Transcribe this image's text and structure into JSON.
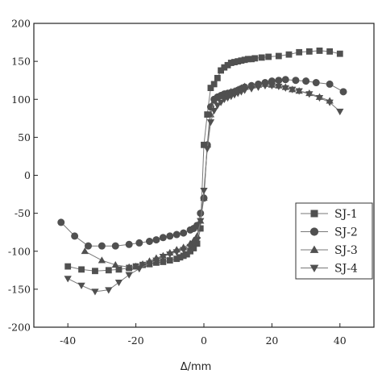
{
  "chart_data": {
    "type": "scatter",
    "title": "",
    "xlabel": "Δ/mm",
    "ylabel": "",
    "xlim": [
      -50,
      50
    ],
    "ylim": [
      -200,
      200
    ],
    "x_ticks": [
      -40,
      -20,
      0,
      20,
      40
    ],
    "y_ticks": [
      -200,
      -150,
      -100,
      -50,
      0,
      50,
      100,
      150,
      200
    ],
    "grid": false,
    "legend_position": "right",
    "series": [
      {
        "name": "SJ-1",
        "marker": "square",
        "color": "#4a4a4a",
        "points": [
          [
            -40,
            -120
          ],
          [
            -36,
            -124
          ],
          [
            -32,
            -126
          ],
          [
            -28,
            -125
          ],
          [
            -25,
            -124
          ],
          [
            -22,
            -122
          ],
          [
            -20,
            -120
          ],
          [
            -18,
            -118
          ],
          [
            -16,
            -117
          ],
          [
            -14,
            -115
          ],
          [
            -12,
            -114
          ],
          [
            -10,
            -112
          ],
          [
            -8,
            -110
          ],
          [
            -7,
            -108
          ],
          [
            -6,
            -106
          ],
          [
            -5,
            -104
          ],
          [
            -4,
            -100
          ],
          [
            -3,
            -96
          ],
          [
            -2,
            -90
          ],
          [
            -1,
            -70
          ],
          [
            0,
            40
          ],
          [
            1,
            80
          ],
          [
            2,
            115
          ],
          [
            3,
            120
          ],
          [
            4,
            128
          ],
          [
            5,
            138
          ],
          [
            6,
            142
          ],
          [
            7,
            145
          ],
          [
            8,
            148
          ],
          [
            9,
            149
          ],
          [
            10,
            150
          ],
          [
            11,
            151
          ],
          [
            12,
            152
          ],
          [
            13,
            153
          ],
          [
            14,
            153
          ],
          [
            15,
            154
          ],
          [
            17,
            155
          ],
          [
            19,
            156
          ],
          [
            22,
            157
          ],
          [
            25,
            159
          ],
          [
            28,
            162
          ],
          [
            31,
            163
          ],
          [
            34,
            164
          ],
          [
            37,
            163
          ],
          [
            40,
            160
          ]
        ]
      },
      {
        "name": "SJ-2",
        "marker": "circle",
        "color": "#4a4a4a",
        "points": [
          [
            -42,
            -62
          ],
          [
            -38,
            -80
          ],
          [
            -34,
            -93
          ],
          [
            -30,
            -93
          ],
          [
            -26,
            -93
          ],
          [
            -22,
            -91
          ],
          [
            -19,
            -89
          ],
          [
            -16,
            -87
          ],
          [
            -14,
            -85
          ],
          [
            -12,
            -82
          ],
          [
            -10,
            -80
          ],
          [
            -8,
            -78
          ],
          [
            -6,
            -76
          ],
          [
            -4,
            -72
          ],
          [
            -3,
            -70
          ],
          [
            -2,
            -66
          ],
          [
            -1,
            -50
          ],
          [
            0,
            -30
          ],
          [
            1,
            40
          ],
          [
            2,
            90
          ],
          [
            3,
            100
          ],
          [
            4,
            103
          ],
          [
            5,
            105
          ],
          [
            6,
            107
          ],
          [
            7,
            108
          ],
          [
            8,
            109
          ],
          [
            9,
            110
          ],
          [
            10,
            112
          ],
          [
            11,
            114
          ],
          [
            12,
            116
          ],
          [
            14,
            118
          ],
          [
            16,
            120
          ],
          [
            18,
            122
          ],
          [
            20,
            124
          ],
          [
            22,
            125
          ],
          [
            24,
            126
          ],
          [
            27,
            125
          ],
          [
            30,
            124
          ],
          [
            33,
            122
          ],
          [
            37,
            120
          ],
          [
            41,
            110
          ]
        ]
      },
      {
        "name": "SJ-3",
        "marker": "triangle-up",
        "color": "#4a4a4a",
        "points": [
          [
            -35,
            -100
          ],
          [
            -30,
            -112
          ],
          [
            -26,
            -118
          ],
          [
            -22,
            -121
          ],
          [
            -20,
            -120
          ],
          [
            -18,
            -117
          ],
          [
            -16,
            -113
          ],
          [
            -14,
            -109
          ],
          [
            -12,
            -106
          ],
          [
            -10,
            -102
          ],
          [
            -8,
            -98
          ],
          [
            -6,
            -95
          ],
          [
            -4,
            -90
          ],
          [
            -3,
            -86
          ],
          [
            -2,
            -80
          ],
          [
            -1,
            -60
          ],
          [
            0,
            -30
          ],
          [
            1,
            40
          ],
          [
            2,
            80
          ],
          [
            3,
            98
          ],
          [
            4,
            102
          ],
          [
            5,
            105
          ],
          [
            6,
            107
          ],
          [
            7,
            108
          ],
          [
            8,
            110
          ],
          [
            9,
            111
          ],
          [
            10,
            113
          ],
          [
            11,
            115
          ],
          [
            12,
            117
          ],
          [
            14,
            118
          ],
          [
            16,
            119
          ],
          [
            18,
            120
          ],
          [
            20,
            119
          ],
          [
            22,
            118
          ],
          [
            24,
            116
          ],
          [
            26,
            113
          ],
          [
            28,
            111
          ],
          [
            31,
            108
          ],
          [
            34,
            103
          ],
          [
            37,
            98
          ]
        ]
      },
      {
        "name": "SJ-4",
        "marker": "triangle-down",
        "color": "#4a4a4a",
        "points": [
          [
            -40,
            -136
          ],
          [
            -36,
            -145
          ],
          [
            -32,
            -153
          ],
          [
            -28,
            -151
          ],
          [
            -25,
            -141
          ],
          [
            -22,
            -131
          ],
          [
            -19,
            -123
          ],
          [
            -16,
            -116
          ],
          [
            -14,
            -112
          ],
          [
            -12,
            -107
          ],
          [
            -10,
            -104
          ],
          [
            -8,
            -101
          ],
          [
            -6,
            -98
          ],
          [
            -4,
            -94
          ],
          [
            -3,
            -90
          ],
          [
            -2,
            -85
          ],
          [
            -1,
            -60
          ],
          [
            0,
            -20
          ],
          [
            1,
            35
          ],
          [
            2,
            70
          ],
          [
            3,
            85
          ],
          [
            4,
            92
          ],
          [
            5,
            96
          ],
          [
            6,
            100
          ],
          [
            7,
            102
          ],
          [
            8,
            104
          ],
          [
            9,
            106
          ],
          [
            10,
            108
          ],
          [
            11,
            110
          ],
          [
            12,
            112
          ],
          [
            14,
            114
          ],
          [
            16,
            116
          ],
          [
            18,
            118
          ],
          [
            20,
            118
          ],
          [
            22,
            117
          ],
          [
            24,
            115
          ],
          [
            26,
            113
          ],
          [
            28,
            111
          ],
          [
            31,
            107
          ],
          [
            34,
            102
          ],
          [
            37,
            96
          ],
          [
            40,
            84
          ]
        ]
      }
    ]
  }
}
